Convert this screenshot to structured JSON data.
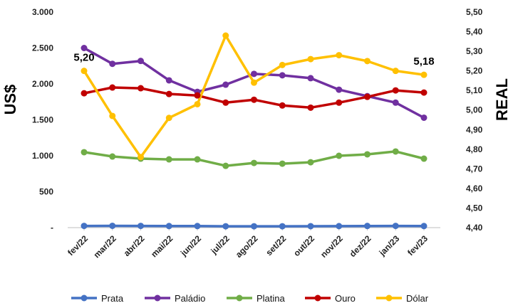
{
  "chart_data": {
    "type": "line",
    "categories": [
      "fev/22",
      "mar/22",
      "abr/22",
      "mai/22",
      "jun/22",
      "jul/22",
      "ago/22",
      "set/22",
      "out/22",
      "nov/22",
      "dez/22",
      "jan/23",
      "fev/23"
    ],
    "y_left_label": "US$",
    "y_right_label": "REAL",
    "y_left_ticks": [
      "-",
      "500",
      "1.000",
      "1.500",
      "2.000",
      "2.500",
      "3.000"
    ],
    "y_right_ticks": [
      "4,40",
      "4,50",
      "4,60",
      "4,70",
      "4,80",
      "4,90",
      "5,00",
      "5,10",
      "5,20",
      "5,30",
      "5,40",
      "5,50"
    ],
    "y_left_range": [
      0,
      3000
    ],
    "y_right_range": [
      4.4,
      5.5
    ],
    "grid": false,
    "legend_position": "bottom",
    "series": [
      {
        "name": "Prata",
        "axis": "left",
        "color": "#4472C4",
        "values": [
          24,
          25,
          24,
          22,
          22,
          19,
          19,
          19,
          20,
          21,
          23,
          24,
          22
        ]
      },
      {
        "name": "Paládio",
        "axis": "left",
        "color": "#7030A0",
        "values": [
          2500,
          2280,
          2320,
          2050,
          1890,
          1990,
          2140,
          2120,
          2080,
          1920,
          1830,
          1740,
          1530
        ]
      },
      {
        "name": "Platina",
        "axis": "left",
        "color": "#70AD47",
        "values": [
          1050,
          990,
          960,
          950,
          950,
          860,
          900,
          890,
          910,
          1000,
          1020,
          1060,
          960
        ]
      },
      {
        "name": "Ouro",
        "axis": "left",
        "color": "#C00000",
        "values": [
          1870,
          1950,
          1940,
          1860,
          1840,
          1740,
          1780,
          1700,
          1670,
          1740,
          1820,
          1910,
          1880
        ]
      },
      {
        "name": "Dólar",
        "axis": "right",
        "color": "#FFC000",
        "values": [
          5.2,
          4.97,
          4.76,
          4.96,
          5.03,
          5.38,
          5.14,
          5.23,
          5.26,
          5.28,
          5.25,
          5.2,
          5.18
        ]
      }
    ],
    "annotations": [
      {
        "series": "Dólar",
        "index": 0,
        "text": "5,20"
      },
      {
        "series": "Dólar",
        "index": 12,
        "text": "5,18"
      }
    ]
  }
}
